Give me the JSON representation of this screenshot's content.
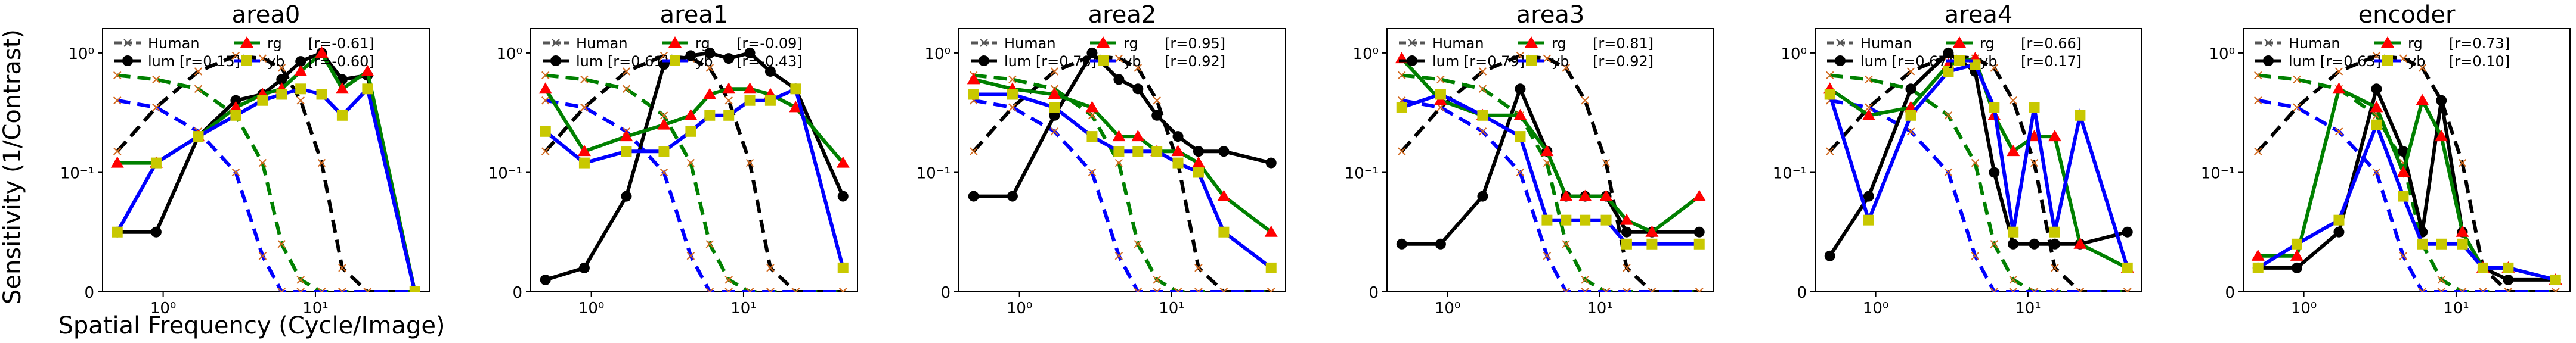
{
  "figure": {
    "ylabel": "Sensitivity (1/Contrast)",
    "xlabel": "Spatial Frequency (Cycle/Image)",
    "x_ticks": [
      {
        "value": 1,
        "label": "10⁰"
      },
      {
        "value": 10,
        "label": "10¹"
      }
    ],
    "y_ticks": [
      {
        "value": 0,
        "label": "0"
      },
      {
        "value": 0.1,
        "label": "10⁻¹"
      },
      {
        "value": 1,
        "label": "10⁰"
      }
    ],
    "scale": "symlog",
    "colors": {
      "human": "#555555",
      "lum": "#000000",
      "rg": "#ff0000",
      "yb": "#c8c800",
      "rg_line": "#008000",
      "yb_line": "#0000ff"
    }
  },
  "chart_data": [
    {
      "type": "line",
      "title": "area0",
      "x": [
        0.5,
        0.9,
        1.7,
        3.0,
        4.5,
        6.0,
        8.0,
        11.0,
        15.0,
        22.0,
        45.0
      ],
      "xlim": [
        0.4,
        56
      ],
      "ylim": [
        0,
        1.6
      ],
      "legend": [
        {
          "key": "human",
          "label": "Human"
        },
        {
          "key": "lum",
          "label": "lum [r=0.15]"
        },
        {
          "key": "rg",
          "label": "rg"
        },
        {
          "key": "rg_r",
          "label": "[r=-0.61]"
        },
        {
          "key": "yb",
          "label": "yb"
        },
        {
          "key": "yb_r",
          "label": "[r=-0.60]"
        }
      ],
      "series": [
        {
          "name": "lum",
          "values": [
            0.05,
            0.05,
            0.2,
            0.4,
            0.45,
            0.6,
            0.85,
            1.0,
            0.6,
            0.65,
            0.0
          ]
        },
        {
          "name": "rg",
          "values": [
            0.12,
            0.12,
            0.2,
            0.35,
            0.45,
            0.5,
            0.7,
            1.0,
            0.5,
            0.7,
            0.0
          ]
        },
        {
          "name": "yb",
          "values": [
            0.05,
            0.12,
            0.2,
            0.3,
            0.4,
            0.45,
            0.5,
            0.45,
            0.3,
            0.5,
            0.0
          ]
        }
      ],
      "human_reference": [
        {
          "style": "dashed",
          "color": "#000000",
          "values": [
            0.15,
            0.35,
            0.7,
            0.95,
            0.9,
            0.75,
            0.4,
            0.12,
            0.02,
            0.0,
            0.0
          ]
        },
        {
          "style": "dashed",
          "color": "#008000",
          "values": [
            0.65,
            0.6,
            0.5,
            0.3,
            0.12,
            0.04,
            0.01,
            0.0,
            0.0,
            0.0,
            0.0
          ]
        },
        {
          "style": "dashed",
          "color": "#0000ff",
          "values": [
            0.4,
            0.35,
            0.22,
            0.1,
            0.03,
            0.0,
            0.0,
            0.0,
            0.0,
            0.0,
            0.0
          ]
        }
      ]
    },
    {
      "type": "line",
      "title": "area1",
      "x": [
        0.5,
        0.9,
        1.7,
        3.0,
        4.5,
        6.0,
        8.0,
        11.0,
        15.0,
        22.0,
        45.0
      ],
      "xlim": [
        0.4,
        56
      ],
      "ylim": [
        0,
        1.6
      ],
      "legend": [
        {
          "key": "human",
          "label": "Human"
        },
        {
          "key": "lum",
          "label": "lum [r=0.61]"
        },
        {
          "key": "rg",
          "label": "rg"
        },
        {
          "key": "rg_r",
          "label": "[r=-0.09]"
        },
        {
          "key": "yb",
          "label": "yb"
        },
        {
          "key": "yb_r",
          "label": "[r=-0.43]"
        }
      ],
      "series": [
        {
          "name": "lum",
          "values": [
            0.01,
            0.02,
            0.08,
            0.8,
            0.95,
            1.0,
            0.9,
            1.0,
            0.7,
            0.5,
            0.08
          ]
        },
        {
          "name": "rg",
          "values": [
            0.5,
            0.15,
            0.2,
            0.25,
            0.3,
            0.45,
            0.5,
            0.5,
            0.45,
            0.35,
            0.12
          ]
        },
        {
          "name": "yb",
          "values": [
            0.22,
            0.12,
            0.15,
            0.15,
            0.22,
            0.3,
            0.3,
            0.4,
            0.4,
            0.5,
            0.02
          ]
        }
      ],
      "human_reference": [
        {
          "style": "dashed",
          "color": "#000000",
          "values": [
            0.15,
            0.35,
            0.7,
            0.95,
            0.9,
            0.75,
            0.4,
            0.12,
            0.02,
            0.0,
            0.0
          ]
        },
        {
          "style": "dashed",
          "color": "#008000",
          "values": [
            0.65,
            0.6,
            0.5,
            0.3,
            0.12,
            0.04,
            0.01,
            0.0,
            0.0,
            0.0,
            0.0
          ]
        },
        {
          "style": "dashed",
          "color": "#0000ff",
          "values": [
            0.4,
            0.35,
            0.22,
            0.1,
            0.03,
            0.0,
            0.0,
            0.0,
            0.0,
            0.0,
            0.0
          ]
        }
      ]
    },
    {
      "type": "line",
      "title": "area2",
      "x": [
        0.5,
        0.9,
        1.7,
        3.0,
        4.5,
        6.0,
        8.0,
        11.0,
        15.0,
        22.0,
        45.0
      ],
      "xlim": [
        0.4,
        56
      ],
      "ylim": [
        0,
        1.6
      ],
      "legend": [
        {
          "key": "human",
          "label": "Human"
        },
        {
          "key": "lum",
          "label": "lum [r=0.78]"
        },
        {
          "key": "rg",
          "label": "rg"
        },
        {
          "key": "rg_r",
          "label": "[r=0.95]"
        },
        {
          "key": "yb",
          "label": "yb"
        },
        {
          "key": "yb_r",
          "label": "[r=0.92]"
        }
      ],
      "series": [
        {
          "name": "lum",
          "values": [
            0.08,
            0.08,
            0.3,
            1.0,
            0.6,
            0.5,
            0.3,
            0.2,
            0.15,
            0.15,
            0.12
          ]
        },
        {
          "name": "rg",
          "values": [
            0.6,
            0.5,
            0.45,
            0.35,
            0.2,
            0.2,
            0.15,
            0.15,
            0.12,
            0.08,
            0.05
          ]
        },
        {
          "name": "yb",
          "values": [
            0.45,
            0.45,
            0.35,
            0.2,
            0.15,
            0.15,
            0.15,
            0.12,
            0.1,
            0.05,
            0.02
          ]
        }
      ],
      "human_reference": [
        {
          "style": "dashed",
          "color": "#000000",
          "values": [
            0.15,
            0.35,
            0.7,
            0.95,
            0.9,
            0.75,
            0.4,
            0.12,
            0.02,
            0.0,
            0.0
          ]
        },
        {
          "style": "dashed",
          "color": "#008000",
          "values": [
            0.65,
            0.6,
            0.5,
            0.3,
            0.12,
            0.04,
            0.01,
            0.0,
            0.0,
            0.0,
            0.0
          ]
        },
        {
          "style": "dashed",
          "color": "#0000ff",
          "values": [
            0.4,
            0.35,
            0.22,
            0.1,
            0.03,
            0.0,
            0.0,
            0.0,
            0.0,
            0.0,
            0.0
          ]
        }
      ]
    },
    {
      "type": "line",
      "title": "area3",
      "x": [
        0.5,
        0.9,
        1.7,
        3.0,
        4.5,
        6.0,
        8.0,
        11.0,
        15.0,
        22.0,
        45.0
      ],
      "xlim": [
        0.4,
        56
      ],
      "ylim": [
        0,
        1.6
      ],
      "legend": [
        {
          "key": "human",
          "label": "Human"
        },
        {
          "key": "lum",
          "label": "lum [r=0.79]"
        },
        {
          "key": "rg",
          "label": "rg"
        },
        {
          "key": "rg_r",
          "label": "[r=0.81]"
        },
        {
          "key": "yb",
          "label": "yb"
        },
        {
          "key": "yb_r",
          "label": "[r=0.92]"
        }
      ],
      "series": [
        {
          "name": "lum",
          "values": [
            0.04,
            0.04,
            0.08,
            0.5,
            0.15,
            0.08,
            0.08,
            0.08,
            0.05,
            0.05,
            0.05
          ]
        },
        {
          "name": "rg",
          "values": [
            0.9,
            0.4,
            0.3,
            0.3,
            0.15,
            0.08,
            0.08,
            0.08,
            0.06,
            0.05,
            0.08
          ]
        },
        {
          "name": "yb",
          "values": [
            0.35,
            0.45,
            0.3,
            0.2,
            0.06,
            0.06,
            0.06,
            0.06,
            0.04,
            0.04,
            0.04
          ]
        }
      ],
      "human_reference": [
        {
          "style": "dashed",
          "color": "#000000",
          "values": [
            0.15,
            0.35,
            0.7,
            0.95,
            0.9,
            0.75,
            0.4,
            0.12,
            0.02,
            0.0,
            0.0
          ]
        },
        {
          "style": "dashed",
          "color": "#008000",
          "values": [
            0.65,
            0.6,
            0.5,
            0.3,
            0.12,
            0.04,
            0.01,
            0.0,
            0.0,
            0.0,
            0.0
          ]
        },
        {
          "style": "dashed",
          "color": "#0000ff",
          "values": [
            0.4,
            0.35,
            0.22,
            0.1,
            0.03,
            0.0,
            0.0,
            0.0,
            0.0,
            0.0,
            0.0
          ]
        }
      ]
    },
    {
      "type": "line",
      "title": "area4",
      "x": [
        0.5,
        0.9,
        1.7,
        3.0,
        4.5,
        6.0,
        8.0,
        11.0,
        15.0,
        22.0,
        45.0
      ],
      "xlim": [
        0.4,
        56
      ],
      "ylim": [
        0,
        1.6
      ],
      "legend": [
        {
          "key": "human",
          "label": "Human"
        },
        {
          "key": "lum",
          "label": "lum [r=0.67]"
        },
        {
          "key": "rg",
          "label": "rg"
        },
        {
          "key": "rg_r",
          "label": "[r=0.66]"
        },
        {
          "key": "yb",
          "label": "yb"
        },
        {
          "key": "yb_r",
          "label": "[r=0.17]"
        }
      ],
      "series": [
        {
          "name": "lum",
          "values": [
            0.03,
            0.08,
            0.5,
            1.0,
            0.7,
            0.1,
            0.04,
            0.04,
            0.04,
            0.04,
            0.05
          ]
        },
        {
          "name": "rg",
          "values": [
            0.5,
            0.3,
            0.35,
            0.8,
            0.9,
            0.3,
            0.15,
            0.2,
            0.2,
            0.04,
            0.02
          ]
        },
        {
          "name": "yb",
          "values": [
            0.45,
            0.06,
            0.3,
            0.7,
            0.8,
            0.35,
            0.05,
            0.35,
            0.05,
            0.3,
            0.02
          ]
        }
      ],
      "human_reference": [
        {
          "style": "dashed",
          "color": "#000000",
          "values": [
            0.15,
            0.35,
            0.7,
            0.95,
            0.9,
            0.75,
            0.4,
            0.12,
            0.02,
            0.0,
            0.0
          ]
        },
        {
          "style": "dashed",
          "color": "#008000",
          "values": [
            0.65,
            0.6,
            0.5,
            0.3,
            0.12,
            0.04,
            0.01,
            0.0,
            0.0,
            0.0,
            0.0
          ]
        },
        {
          "style": "dashed",
          "color": "#0000ff",
          "values": [
            0.4,
            0.35,
            0.22,
            0.1,
            0.03,
            0.0,
            0.0,
            0.0,
            0.0,
            0.0,
            0.0
          ]
        }
      ]
    },
    {
      "type": "line",
      "title": "encoder",
      "x": [
        0.5,
        0.9,
        1.7,
        3.0,
        4.5,
        6.0,
        8.0,
        11.0,
        15.0,
        22.0,
        45.0
      ],
      "xlim": [
        0.4,
        56
      ],
      "ylim": [
        0,
        1.6
      ],
      "legend": [
        {
          "key": "human",
          "label": "Human"
        },
        {
          "key": "lum",
          "label": "lum [r=0.63]"
        },
        {
          "key": "rg",
          "label": "rg"
        },
        {
          "key": "rg_r",
          "label": "[r=0.73]"
        },
        {
          "key": "yb",
          "label": "yb"
        },
        {
          "key": "yb_r",
          "label": "[r=0.10]"
        }
      ],
      "series": [
        {
          "name": "lum",
          "values": [
            0.02,
            0.02,
            0.05,
            0.5,
            0.15,
            0.05,
            0.4,
            0.05,
            0.02,
            0.01,
            0.01
          ]
        },
        {
          "name": "rg",
          "values": [
            0.03,
            0.03,
            0.5,
            0.35,
            0.1,
            0.4,
            0.2,
            0.05,
            0.02,
            0.02,
            0.01
          ]
        },
        {
          "name": "yb",
          "values": [
            0.02,
            0.04,
            0.06,
            0.25,
            0.08,
            0.04,
            0.04,
            0.04,
            0.02,
            0.02,
            0.01
          ]
        }
      ],
      "human_reference": [
        {
          "style": "dashed",
          "color": "#000000",
          "values": [
            0.15,
            0.35,
            0.7,
            0.95,
            0.9,
            0.75,
            0.4,
            0.12,
            0.02,
            0.0,
            0.0
          ]
        },
        {
          "style": "dashed",
          "color": "#008000",
          "values": [
            0.65,
            0.6,
            0.5,
            0.3,
            0.12,
            0.04,
            0.01,
            0.0,
            0.0,
            0.0,
            0.0
          ]
        },
        {
          "style": "dashed",
          "color": "#0000ff",
          "values": [
            0.4,
            0.35,
            0.22,
            0.1,
            0.03,
            0.0,
            0.0,
            0.0,
            0.0,
            0.0,
            0.0
          ]
        }
      ]
    }
  ]
}
